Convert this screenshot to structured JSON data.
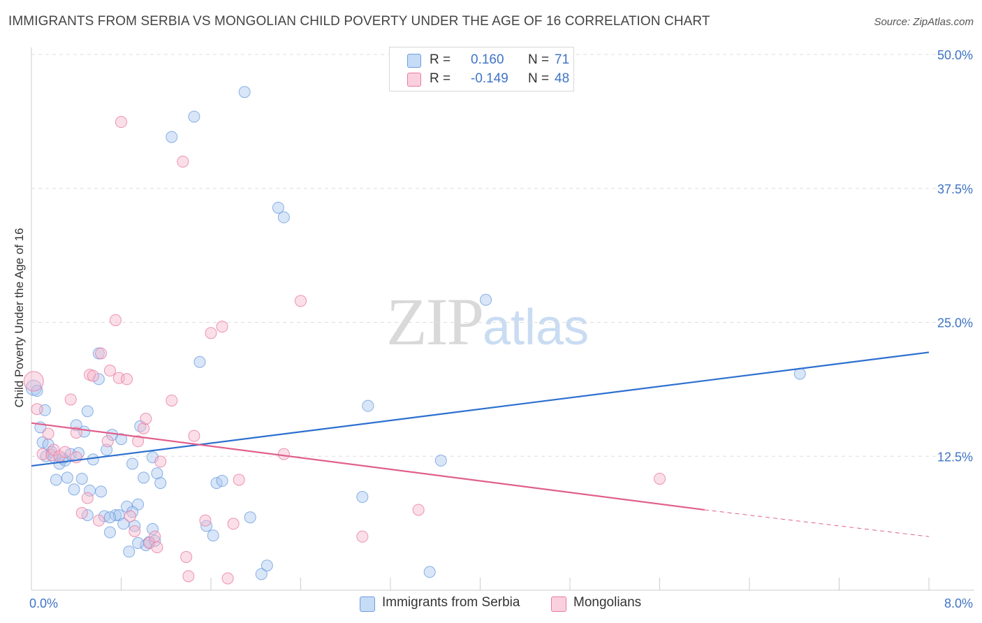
{
  "header": {
    "title": "IMMIGRANTS FROM SERBIA VS MONGOLIAN CHILD POVERTY UNDER THE AGE OF 16 CORRELATION CHART",
    "source": "Source: ZipAtlas.com"
  },
  "watermark": {
    "zip": "ZIP",
    "atlas": "atlas"
  },
  "legend": {
    "rows": [
      {
        "r_label": "R =",
        "r_value": "0.160",
        "n_label": "N =",
        "n_value": "71",
        "color": "#aac8f0"
      },
      {
        "r_label": "R =",
        "r_value": "-0.149",
        "n_label": "N =",
        "n_value": "48",
        "color": "#f7b7cc"
      }
    ]
  },
  "chart_data": {
    "type": "scatter",
    "title": "IMMIGRANTS FROM SERBIA VS MONGOLIAN CHILD POVERTY UNDER THE AGE OF 16 CORRELATION CHART",
    "xlabel": "",
    "ylabel": "Child Poverty Under the Age of 16",
    "xlim": [
      0,
      8
    ],
    "ylim": [
      0,
      50
    ],
    "x_tick_labels": [
      "0.0%",
      "8.0%"
    ],
    "y_ticks": [
      12.5,
      25.0,
      37.5,
      50.0
    ],
    "y_tick_labels": [
      "12.5%",
      "25.0%",
      "37.5%",
      "50.0%"
    ],
    "grid": true,
    "legend_position": "bottom",
    "series": [
      {
        "name": "Immigrants from Serbia",
        "color": "#6d9de0",
        "fill": "#aac8f0",
        "trend": {
          "x": [
            0,
            8
          ],
          "y": [
            11.6,
            22.2
          ],
          "style": "solid",
          "color": "#2c6fd0"
        },
        "points": [
          [
            0.02,
            18.9
          ],
          [
            0.05,
            18.6
          ],
          [
            0.08,
            15.2
          ],
          [
            0.1,
            13.8
          ],
          [
            0.12,
            16.8
          ],
          [
            0.13,
            12.5
          ],
          [
            0.15,
            13.6
          ],
          [
            0.18,
            12.9
          ],
          [
            0.2,
            12.4
          ],
          [
            0.22,
            10.3
          ],
          [
            0.25,
            11.8
          ],
          [
            0.28,
            12.3
          ],
          [
            0.3,
            12.1
          ],
          [
            0.32,
            10.5
          ],
          [
            0.35,
            12.7
          ],
          [
            0.38,
            9.4
          ],
          [
            0.4,
            15.4
          ],
          [
            0.42,
            12.8
          ],
          [
            0.45,
            10.4
          ],
          [
            0.47,
            14.8
          ],
          [
            0.5,
            16.7
          ],
          [
            0.52,
            9.3
          ],
          [
            0.55,
            12.2
          ],
          [
            0.6,
            19.7
          ],
          [
            0.62,
            9.2
          ],
          [
            0.6,
            22.1
          ],
          [
            0.65,
            6.9
          ],
          [
            0.67,
            13.1
          ],
          [
            0.7,
            5.4
          ],
          [
            0.72,
            14.5
          ],
          [
            0.75,
            7.0
          ],
          [
            0.78,
            7.0
          ],
          [
            0.8,
            14.1
          ],
          [
            0.82,
            6.2
          ],
          [
            0.85,
            7.8
          ],
          [
            0.87,
            3.6
          ],
          [
            0.9,
            11.8
          ],
          [
            0.92,
            6.0
          ],
          [
            0.95,
            8.0
          ],
          [
            0.97,
            15.3
          ],
          [
            1.0,
            10.5
          ],
          [
            1.02,
            4.2
          ],
          [
            1.05,
            4.5
          ],
          [
            1.08,
            5.7
          ],
          [
            1.1,
            4.6
          ],
          [
            1.12,
            10.9
          ],
          [
            1.15,
            10.0
          ],
          [
            1.25,
            42.3
          ],
          [
            1.45,
            44.2
          ],
          [
            1.5,
            21.3
          ],
          [
            1.56,
            6.0
          ],
          [
            1.62,
            5.1
          ],
          [
            1.65,
            10.0
          ],
          [
            1.7,
            10.2
          ],
          [
            1.9,
            46.5
          ],
          [
            1.95,
            6.8
          ],
          [
            2.05,
            1.5
          ],
          [
            2.1,
            2.3
          ],
          [
            2.2,
            35.7
          ],
          [
            2.25,
            34.8
          ],
          [
            2.95,
            8.7
          ],
          [
            3.0,
            17.2
          ],
          [
            3.55,
            1.7
          ],
          [
            3.65,
            12.1
          ],
          [
            4.05,
            27.1
          ],
          [
            6.85,
            20.2
          ],
          [
            0.5,
            7.0
          ],
          [
            0.9,
            7.3
          ],
          [
            1.08,
            12.4
          ],
          [
            0.7,
            6.8
          ],
          [
            0.95,
            4.4
          ]
        ]
      },
      {
        "name": "Mongolians",
        "color": "#e87aa0",
        "fill": "#f7b7cc",
        "trend": {
          "x": [
            0,
            6.0
          ],
          "y": [
            15.6,
            7.5
          ],
          "style": "solid",
          "color": "#e0608c",
          "dashed_extension": {
            "x": [
              6.0,
              8.0
            ],
            "y": [
              7.5,
              5.0
            ]
          }
        },
        "points": [
          [
            0.02,
            19.5
          ],
          [
            0.05,
            16.9
          ],
          [
            0.1,
            12.7
          ],
          [
            0.15,
            14.6
          ],
          [
            0.18,
            12.6
          ],
          [
            0.2,
            13.1
          ],
          [
            0.25,
            12.5
          ],
          [
            0.3,
            12.9
          ],
          [
            0.35,
            17.8
          ],
          [
            0.4,
            14.7
          ],
          [
            0.45,
            7.2
          ],
          [
            0.5,
            8.6
          ],
          [
            0.52,
            20.1
          ],
          [
            0.55,
            20.0
          ],
          [
            0.6,
            6.5
          ],
          [
            0.62,
            22.1
          ],
          [
            0.68,
            13.9
          ],
          [
            0.7,
            20.5
          ],
          [
            0.75,
            25.2
          ],
          [
            0.78,
            19.8
          ],
          [
            0.85,
            19.7
          ],
          [
            0.8,
            43.7
          ],
          [
            0.88,
            6.9
          ],
          [
            0.92,
            5.5
          ],
          [
            0.95,
            13.9
          ],
          [
            1.0,
            15.1
          ],
          [
            1.02,
            16.0
          ],
          [
            1.05,
            4.4
          ],
          [
            1.1,
            5.0
          ],
          [
            1.12,
            4.0
          ],
          [
            1.15,
            12.0
          ],
          [
            1.25,
            17.7
          ],
          [
            1.35,
            40.0
          ],
          [
            1.38,
            3.1
          ],
          [
            1.4,
            1.3
          ],
          [
            1.45,
            14.4
          ],
          [
            1.55,
            6.5
          ],
          [
            1.6,
            24.0
          ],
          [
            1.7,
            24.6
          ],
          [
            1.75,
            1.1
          ],
          [
            1.8,
            6.2
          ],
          [
            1.85,
            10.3
          ],
          [
            2.25,
            12.7
          ],
          [
            2.4,
            27.0
          ],
          [
            2.95,
            5.0
          ],
          [
            3.45,
            7.5
          ],
          [
            5.6,
            10.4
          ],
          [
            0.4,
            12.4
          ]
        ]
      }
    ]
  }
}
